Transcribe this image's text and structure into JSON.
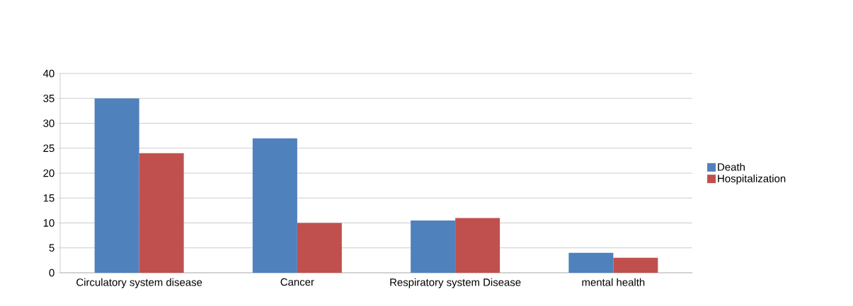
{
  "chart_data": {
    "type": "bar",
    "categories": [
      "Circulatory system disease",
      "Cancer",
      "Respiratory system Disease",
      "mental health"
    ],
    "series": [
      {
        "name": "Death",
        "color": "#4f81bd",
        "values": [
          35,
          27,
          10.5,
          4
        ]
      },
      {
        "name": "Hospitalization",
        "color": "#c0504d",
        "values": [
          24,
          10,
          11,
          3
        ]
      }
    ],
    "ylim": [
      0,
      40
    ],
    "yticks": [
      0,
      5,
      10,
      15,
      20,
      25,
      30,
      35,
      40
    ],
    "grid": "y",
    "legend": "right"
  }
}
